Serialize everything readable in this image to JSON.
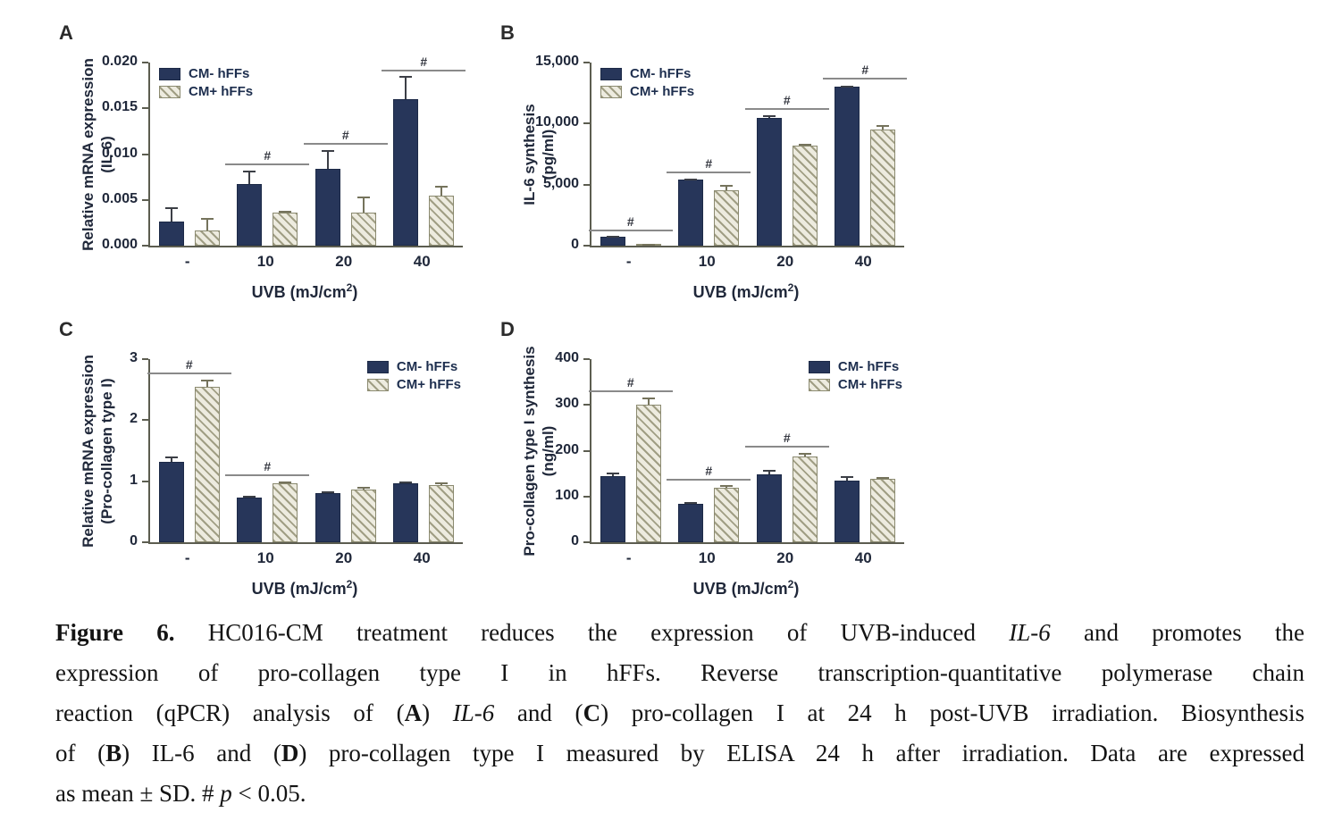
{
  "colors": {
    "navy": "#27365a",
    "hatch_background": "#edebdf",
    "hatch_stripe": "#a09e84",
    "hatch_border": "#8b8a70",
    "axis": "#5c5d50",
    "significance_line": "#8a8a8a",
    "chart_text": "#20283a"
  },
  "chart_data": [
    {
      "type": "bar",
      "panel_label": "A",
      "ylabel_lines": [
        "Relative  mRNA expression",
        "(IL-6)"
      ],
      "xlabel": {
        "pre": "UVB (mJ/cm",
        "sup": "2",
        "post": ")"
      },
      "ymax": 0.02,
      "ytick_values": [
        0,
        0.005,
        0.01,
        0.015,
        0.02
      ],
      "ytick_labels": [
        "0.000",
        "0.005",
        "0.010",
        "0.015",
        "0.020"
      ],
      "categories": [
        "-",
        "10",
        "20",
        "40"
      ],
      "series": [
        {
          "name": "CM- hFFs",
          "values": [
            0.0026,
            0.0067,
            0.0084,
            0.016
          ],
          "errors": [
            0.0016,
            0.0015,
            0.002,
            0.0025
          ]
        },
        {
          "name": "CM+ hFFs",
          "values": [
            0.0017,
            0.0036,
            0.0036,
            0.0055
          ],
          "errors": [
            0.0013,
            0.0002,
            0.0018,
            0.001
          ]
        }
      ],
      "sig_markers": [
        {
          "category_index": 1,
          "y": 0.0088,
          "label": "#"
        },
        {
          "category_index": 2,
          "y": 0.011,
          "label": "#"
        },
        {
          "category_index": 3,
          "y": 0.019,
          "label": "#"
        }
      ],
      "legend_position": "top-left"
    },
    {
      "type": "bar",
      "panel_label": "B",
      "ylabel_lines": [
        "IL-6 synthesis",
        "(pg/ml)"
      ],
      "xlabel": {
        "pre": "UVB (mJ/cm",
        "sup": "2",
        "post": ")"
      },
      "ymax": 15000,
      "ytick_values": [
        0,
        5000,
        10000,
        15000
      ],
      "ytick_labels": [
        "0",
        "5,000",
        "10,000",
        "15,000"
      ],
      "categories": [
        "-",
        "10",
        "20",
        "40"
      ],
      "series": [
        {
          "name": "CM- hFFs",
          "values": [
            700,
            5400,
            10500,
            13000
          ],
          "errors": [
            120,
            120,
            150,
            120
          ]
        },
        {
          "name": "CM+ hFFs",
          "values": [
            150,
            4550,
            8200,
            9500
          ],
          "errors": [
            30,
            400,
            120,
            350
          ]
        }
      ],
      "sig_markers": [
        {
          "category_index": 0,
          "y": 1200,
          "label": "#"
        },
        {
          "category_index": 1,
          "y": 5900,
          "label": "#"
        },
        {
          "category_index": 2,
          "y": 11100,
          "label": "#"
        },
        {
          "category_index": 3,
          "y": 13600,
          "label": "#"
        }
      ],
      "legend_position": "top-left"
    },
    {
      "type": "bar",
      "panel_label": "C",
      "ylabel_lines": [
        "Relative  mRNA expression",
        "(Pro-collagen type I)"
      ],
      "xlabel": {
        "pre": "UVB (mJ/cm",
        "sup": "2",
        "post": ")"
      },
      "ymax": 3,
      "ytick_values": [
        0,
        1,
        2,
        3
      ],
      "ytick_labels": [
        "0",
        "1",
        "2",
        "3"
      ],
      "categories": [
        "-",
        "10",
        "20",
        "40"
      ],
      "series": [
        {
          "name": "CM- hFFs",
          "values": [
            1.32,
            0.73,
            0.81,
            0.96
          ],
          "errors": [
            0.09,
            0.03,
            0.02,
            0.04
          ]
        },
        {
          "name": "CM+ hFFs",
          "values": [
            2.55,
            0.97,
            0.87,
            0.93
          ],
          "errors": [
            0.12,
            0.03,
            0.04,
            0.05
          ]
        }
      ],
      "sig_markers": [
        {
          "category_index": 0,
          "y": 2.75,
          "label": "#"
        },
        {
          "category_index": 1,
          "y": 1.08,
          "label": "#"
        }
      ],
      "legend_position": "top-right"
    },
    {
      "type": "bar",
      "panel_label": "D",
      "ylabel_lines": [
        "Pro-collagen type I synthesis",
        "(ng/ml)"
      ],
      "xlabel": {
        "pre": "UVB (mJ/cm",
        "sup": "2",
        "post": ")"
      },
      "ymax": 400,
      "ytick_values": [
        0,
        100,
        200,
        300,
        400
      ],
      "ytick_labels": [
        "0",
        "100",
        "200",
        "300",
        "400"
      ],
      "categories": [
        "-",
        "10",
        "20",
        "40"
      ],
      "series": [
        {
          "name": "CM- hFFs",
          "values": [
            145,
            83,
            148,
            134
          ],
          "errors": [
            8,
            4,
            10,
            10
          ]
        },
        {
          "name": "CM+ hFFs",
          "values": [
            300,
            120,
            188,
            138
          ],
          "errors": [
            17,
            5,
            8,
            5
          ]
        }
      ],
      "sig_markers": [
        {
          "category_index": 0,
          "y": 328,
          "label": "#"
        },
        {
          "category_index": 1,
          "y": 135,
          "label": "#"
        },
        {
          "category_index": 2,
          "y": 207,
          "label": "#"
        }
      ],
      "legend_position": "top-right"
    }
  ],
  "caption": {
    "lines": [
      {
        "segments": [
          {
            "text": "Figure 6.  ",
            "bold": true
          },
          {
            "text": "HC016-CM treatment reduces the expression of UVB-induced "
          },
          {
            "text": "IL-6",
            "italic": true
          },
          {
            "text": " and promotes the"
          }
        ]
      },
      {
        "segments": [
          {
            "text": "expression of pro-collagen type I in hFFs.  Reverse transcription-quantitative polymerase chain"
          }
        ]
      },
      {
        "segments": [
          {
            "text": "reaction (qPCR) analysis of ("
          },
          {
            "text": "A",
            "bold": true
          },
          {
            "text": ") "
          },
          {
            "text": "IL-6",
            "italic": true
          },
          {
            "text": " and ("
          },
          {
            "text": "C",
            "bold": true
          },
          {
            "text": ") pro-collagen I at 24 h post-UVB irradiation. Biosynthesis"
          }
        ]
      },
      {
        "segments": [
          {
            "text": "of ("
          },
          {
            "text": "B",
            "bold": true
          },
          {
            "text": ") IL-6 and ("
          },
          {
            "text": "D",
            "bold": true
          },
          {
            "text": ") pro-collagen type I measured by ELISA 24 h after irradiation. Data are expressed"
          }
        ]
      },
      {
        "segments": [
          {
            "text": "as mean ± SD. # "
          },
          {
            "text": "p",
            "italic": true
          },
          {
            "text": " < 0.05."
          }
        ]
      }
    ]
  }
}
